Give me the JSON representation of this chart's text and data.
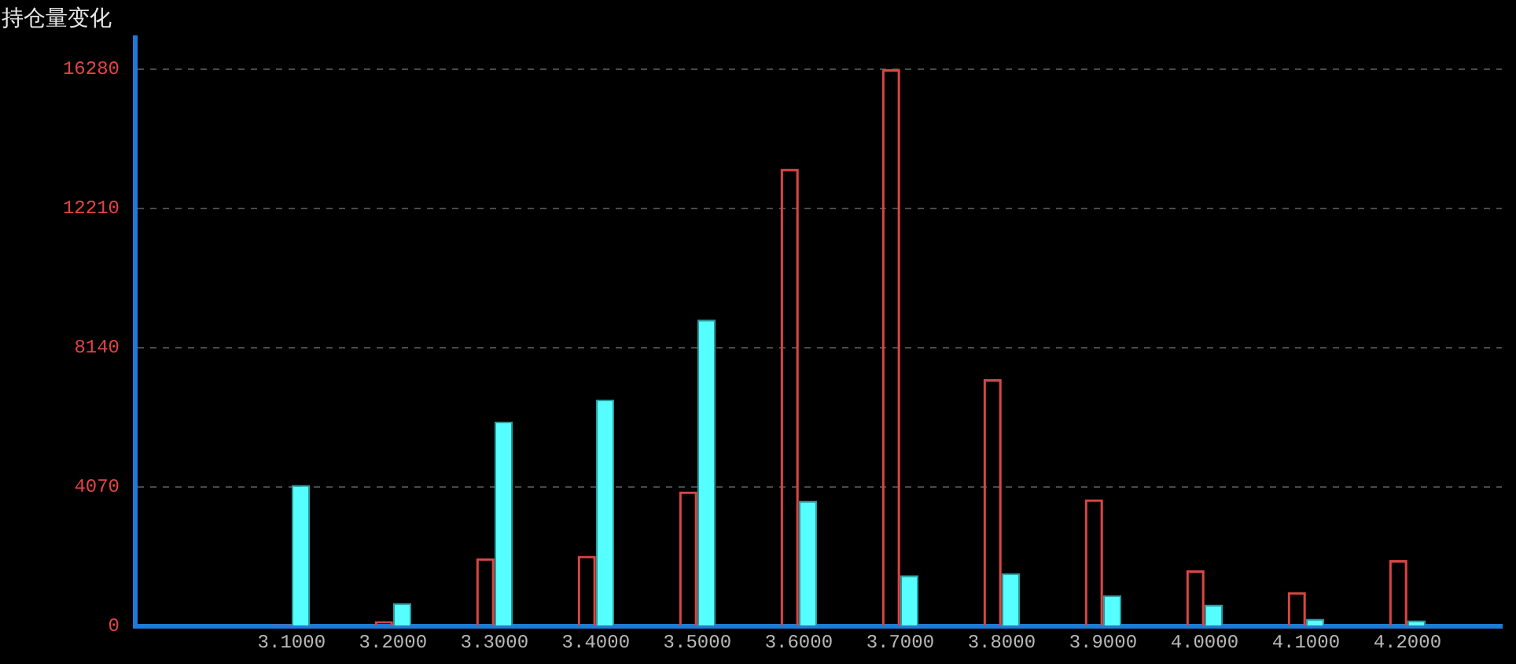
{
  "chart_data": {
    "type": "bar",
    "ylabel": "持仓量变化",
    "categories": [
      "3.1000",
      "3.2000",
      "3.3000",
      "3.4000",
      "3.5000",
      "3.6000",
      "3.7000",
      "3.8000",
      "3.9000",
      "4.0000",
      "4.1000",
      "4.2000"
    ],
    "series": [
      {
        "color": "#d94545",
        "values": [
          50,
          150,
          1990,
          2060,
          3940,
          13370,
          16280,
          7220,
          3710,
          1640,
          1000,
          1930
        ]
      },
      {
        "color": "#55ffff",
        "values": [
          4130,
          680,
          5980,
          6620,
          8960,
          3670,
          1490,
          1550,
          910,
          630,
          220,
          170
        ]
      }
    ],
    "ylim": [
      0,
      17200
    ],
    "yticks": [
      0,
      4070,
      8140,
      12210,
      16280
    ],
    "grid": "y",
    "legend": false
  }
}
